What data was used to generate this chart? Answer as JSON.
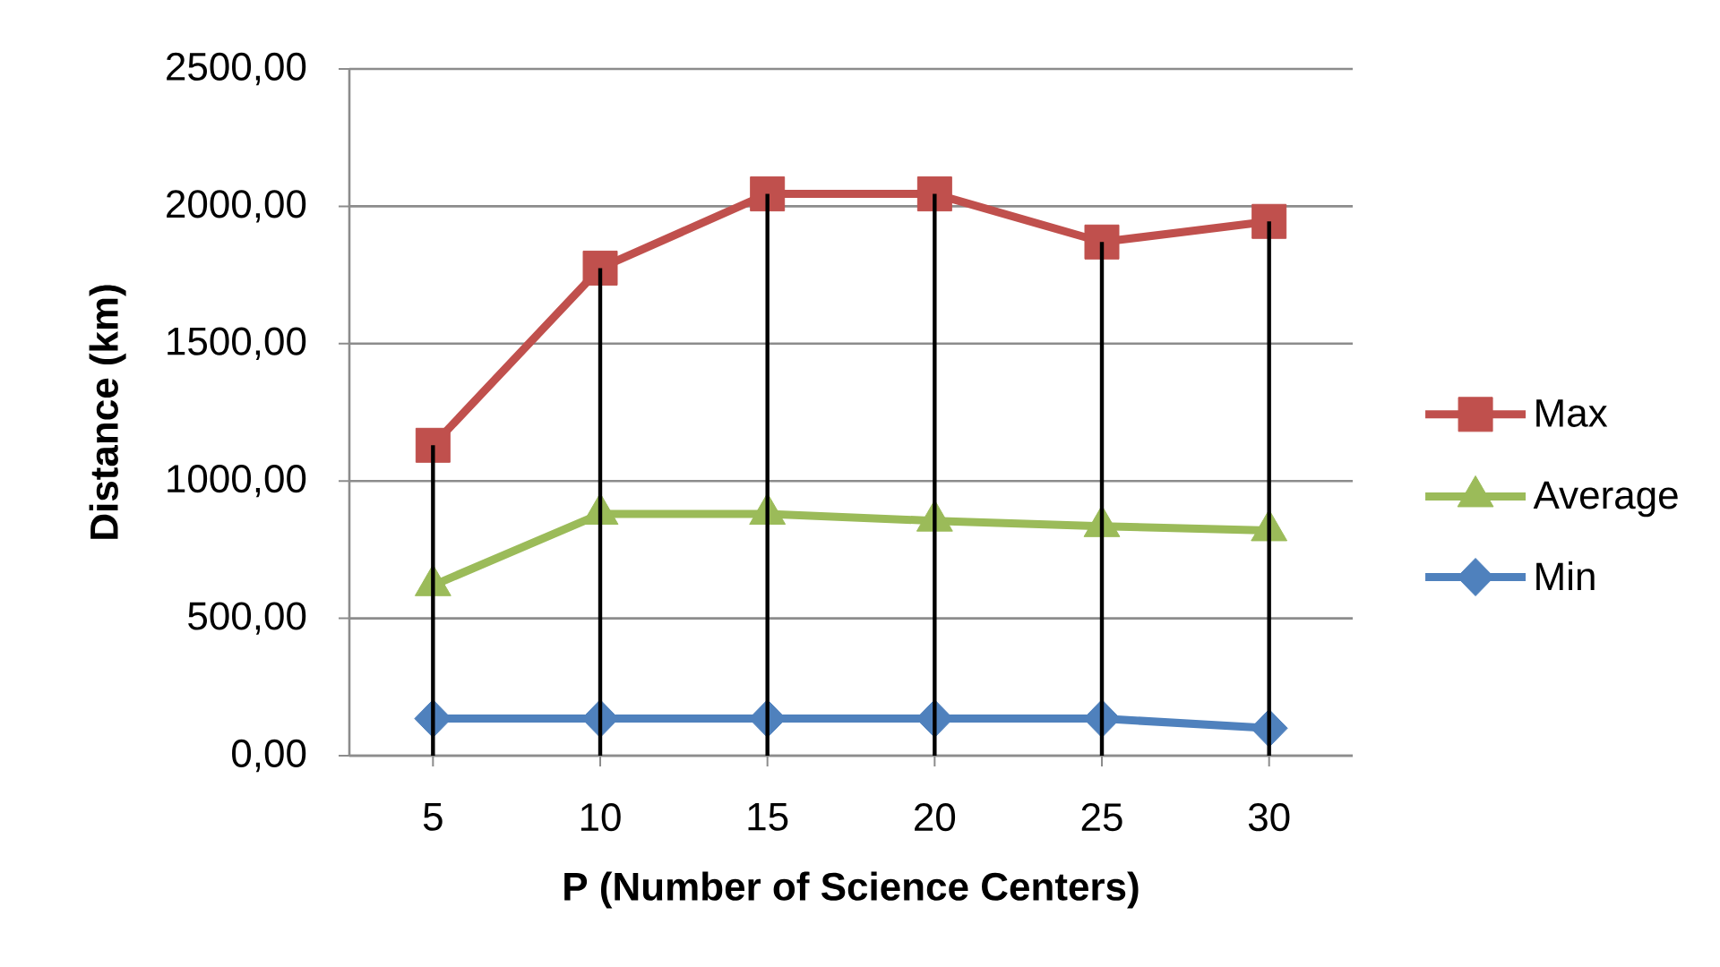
{
  "chart_data": {
    "type": "line",
    "xlabel": "P (Number of Science Centers)",
    "ylabel": "Distance (km)",
    "categories": [
      "5",
      "10",
      "15",
      "20",
      "25",
      "30"
    ],
    "series": [
      {
        "name": "Max",
        "color": "#c0504d",
        "marker": "square",
        "values": [
          1130,
          1775,
          2045,
          2045,
          1870,
          1945
        ]
      },
      {
        "name": "Average",
        "color": "#9bbb59",
        "marker": "triangle",
        "values": [
          620,
          880,
          880,
          855,
          835,
          820
        ]
      },
      {
        "name": "Min",
        "color": "#4f81bd",
        "marker": "diamond",
        "values": [
          135,
          135,
          135,
          135,
          135,
          100
        ]
      },
      {
        "type": "bar",
        "color": "#000000",
        "values": [
          1130,
          1775,
          2045,
          2045,
          1870,
          1945
        ]
      }
    ],
    "ylim": [
      0,
      2500
    ],
    "yticks": [
      {
        "value": 0,
        "label": "0,00"
      },
      {
        "value": 500,
        "label": "500,00"
      },
      {
        "value": 1000,
        "label": "1000,00"
      },
      {
        "value": 1500,
        "label": "1500,00"
      },
      {
        "value": 2000,
        "label": "2000,00"
      },
      {
        "value": 2500,
        "label": "2500,00"
      }
    ],
    "grid": "y",
    "legend": "right"
  }
}
